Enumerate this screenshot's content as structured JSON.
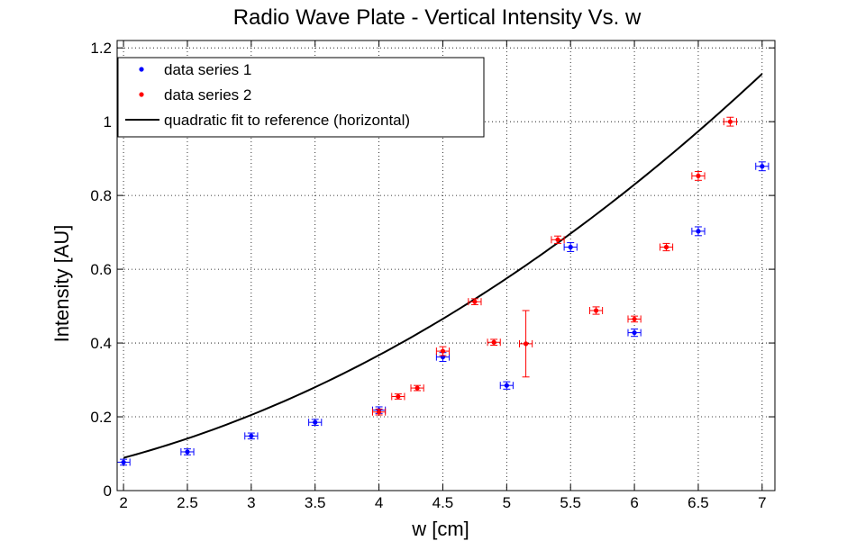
{
  "chart_data": {
    "type": "scatter",
    "title": "Radio Wave Plate - Vertical Intensity Vs. w",
    "xlabel": "w [cm]",
    "ylabel": "Intensity [AU]",
    "xlim": [
      1.95,
      7.1
    ],
    "ylim": [
      0,
      1.22
    ],
    "xticks": [
      "2",
      "2.5",
      "3",
      "3.5",
      "4",
      "4.5",
      "5",
      "5.5",
      "6",
      "6.5",
      "7"
    ],
    "xtick_values": [
      2,
      2.5,
      3,
      3.5,
      4,
      4.5,
      5,
      5.5,
      6,
      6.5,
      7
    ],
    "yticks": [
      "0",
      "0.2",
      "0.4",
      "0.6",
      "0.8",
      "1",
      "1.2"
    ],
    "ytick_values": [
      0,
      0.2,
      0.4,
      0.6,
      0.8,
      1.0,
      1.2
    ],
    "grid": true,
    "legend_position": "top-left",
    "series": [
      {
        "name": "data series 1",
        "color": "#0000ff",
        "points": [
          {
            "x": 2.0,
            "y": 0.077,
            "xerr": 0.05,
            "yerr": 0.008
          },
          {
            "x": 2.5,
            "y": 0.105,
            "xerr": 0.05,
            "yerr": 0.008
          },
          {
            "x": 3.0,
            "y": 0.148,
            "xerr": 0.05,
            "yerr": 0.008
          },
          {
            "x": 3.5,
            "y": 0.185,
            "xerr": 0.05,
            "yerr": 0.008
          },
          {
            "x": 4.0,
            "y": 0.218,
            "xerr": 0.05,
            "yerr": 0.009
          },
          {
            "x": 4.5,
            "y": 0.362,
            "xerr": 0.05,
            "yerr": 0.012
          },
          {
            "x": 5.0,
            "y": 0.285,
            "xerr": 0.05,
            "yerr": 0.01
          },
          {
            "x": 5.5,
            "y": 0.66,
            "xerr": 0.05,
            "yerr": 0.012
          },
          {
            "x": 6.0,
            "y": 0.428,
            "xerr": 0.05,
            "yerr": 0.01
          },
          {
            "x": 6.5,
            "y": 0.703,
            "xerr": 0.05,
            "yerr": 0.012
          },
          {
            "x": 7.0,
            "y": 0.879,
            "xerr": 0.05,
            "yerr": 0.012
          }
        ]
      },
      {
        "name": "data series 2",
        "color": "#ff0000",
        "points": [
          {
            "x": 4.0,
            "y": 0.213,
            "xerr": 0.05,
            "yerr": 0.008
          },
          {
            "x": 4.15,
            "y": 0.255,
            "xerr": 0.05,
            "yerr": 0.007
          },
          {
            "x": 4.3,
            "y": 0.278,
            "xerr": 0.05,
            "yerr": 0.007
          },
          {
            "x": 4.5,
            "y": 0.378,
            "xerr": 0.05,
            "yerr": 0.012
          },
          {
            "x": 4.75,
            "y": 0.512,
            "xerr": 0.05,
            "yerr": 0.008
          },
          {
            "x": 4.9,
            "y": 0.402,
            "xerr": 0.05,
            "yerr": 0.008
          },
          {
            "x": 5.15,
            "y": 0.398,
            "xerr": 0.05,
            "yerr": 0.09
          },
          {
            "x": 5.4,
            "y": 0.68,
            "xerr": 0.05,
            "yerr": 0.01
          },
          {
            "x": 5.7,
            "y": 0.488,
            "xerr": 0.05,
            "yerr": 0.01
          },
          {
            "x": 6.0,
            "y": 0.465,
            "xerr": 0.05,
            "yerr": 0.008
          },
          {
            "x": 6.25,
            "y": 0.66,
            "xerr": 0.05,
            "yerr": 0.01
          },
          {
            "x": 6.5,
            "y": 0.853,
            "xerr": 0.05,
            "yerr": 0.012
          },
          {
            "x": 6.75,
            "y": 1.0,
            "xerr": 0.05,
            "yerr": 0.012
          }
        ]
      },
      {
        "name": "quadratic fit to reference (horizontal)",
        "color": "#000000",
        "type": "line",
        "x": [
          2.0,
          2.5,
          3.0,
          3.5,
          4.0,
          4.5,
          5.0,
          5.5,
          6.0,
          6.5,
          7.0
        ],
        "values": [
          0.092,
          0.14,
          0.203,
          0.278,
          0.365,
          0.465,
          0.58,
          0.698,
          0.83,
          0.975,
          1.127
        ]
      }
    ]
  }
}
